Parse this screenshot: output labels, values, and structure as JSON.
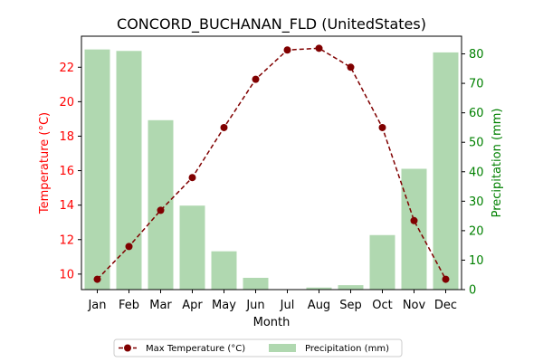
{
  "chart_data": {
    "type": "bar+line",
    "title": "CONCORD_BUCHANAN_FLD (UnitedStates)",
    "xlabel": "Month",
    "y_left_label": "Temperature (°C)",
    "y_right_label": "Precipitation (mm)",
    "categories": [
      "Jan",
      "Feb",
      "Mar",
      "Apr",
      "May",
      "Jun",
      "Jul",
      "Aug",
      "Sep",
      "Oct",
      "Nov",
      "Dec"
    ],
    "y_left_lim": [
      9.1,
      23.8
    ],
    "y_left_ticks": [
      10,
      12,
      14,
      16,
      18,
      20,
      22
    ],
    "y_right_lim": [
      0,
      86
    ],
    "y_right_ticks": [
      0,
      10,
      20,
      30,
      40,
      50,
      60,
      70,
      80
    ],
    "series": [
      {
        "name": "Max Temperature (°C)",
        "kind": "line",
        "axis": "left",
        "color": "#800000",
        "style": "dashed",
        "marker": "circle",
        "values": [
          9.7,
          11.6,
          13.7,
          15.6,
          18.5,
          21.3,
          23.0,
          23.1,
          22.0,
          18.5,
          13.1,
          9.7
        ]
      },
      {
        "name": "Precipitation (mm)",
        "kind": "bar",
        "axis": "right",
        "color": "#b0d8b0",
        "values": [
          81.5,
          81.0,
          57.5,
          28.5,
          13.0,
          4.0,
          0.0,
          0.7,
          1.5,
          18.5,
          41.0,
          80.5
        ]
      }
    ],
    "left_axis_color": "#ff0000",
    "right_axis_color": "#008000",
    "legend_position": "bottom-center"
  }
}
